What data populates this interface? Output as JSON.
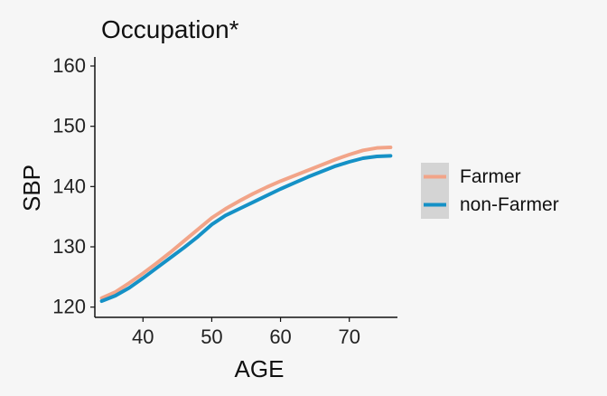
{
  "chart_data": {
    "type": "line",
    "title": "Occupation*",
    "xlabel": "AGE",
    "ylabel": "SBP",
    "xlim": [
      33,
      77
    ],
    "ylim": [
      118.3,
      161.5
    ],
    "xticks": [
      40,
      50,
      60,
      70
    ],
    "yticks": [
      120,
      130,
      140,
      150,
      160
    ],
    "grid": false,
    "legend_position": "right",
    "series": [
      {
        "name": "Farmer",
        "color": "#f2a488",
        "x": [
          34,
          36,
          38,
          40,
          42,
          44,
          46,
          48,
          50,
          52,
          54,
          56,
          58,
          60,
          62,
          64,
          66,
          68,
          70,
          72,
          74,
          76
        ],
        "y": [
          121.5,
          122.5,
          124,
          125.6,
          127.3,
          129.1,
          131,
          132.9,
          134.8,
          136.3,
          137.6,
          138.8,
          139.9,
          140.9,
          141.8,
          142.7,
          143.6,
          144.5,
          145.3,
          146,
          146.4,
          146.5
        ]
      },
      {
        "name": "non-Farmer",
        "color": "#1591c6",
        "x": [
          34,
          36,
          38,
          40,
          42,
          44,
          46,
          48,
          50,
          52,
          54,
          56,
          58,
          60,
          62,
          64,
          66,
          68,
          70,
          72,
          74,
          76
        ],
        "y": [
          121,
          121.9,
          123.2,
          124.8,
          126.5,
          128.2,
          129.9,
          131.7,
          133.7,
          135.2,
          136.3,
          137.4,
          138.5,
          139.6,
          140.6,
          141.6,
          142.5,
          143.4,
          144.1,
          144.7,
          145,
          145.1
        ]
      }
    ]
  }
}
